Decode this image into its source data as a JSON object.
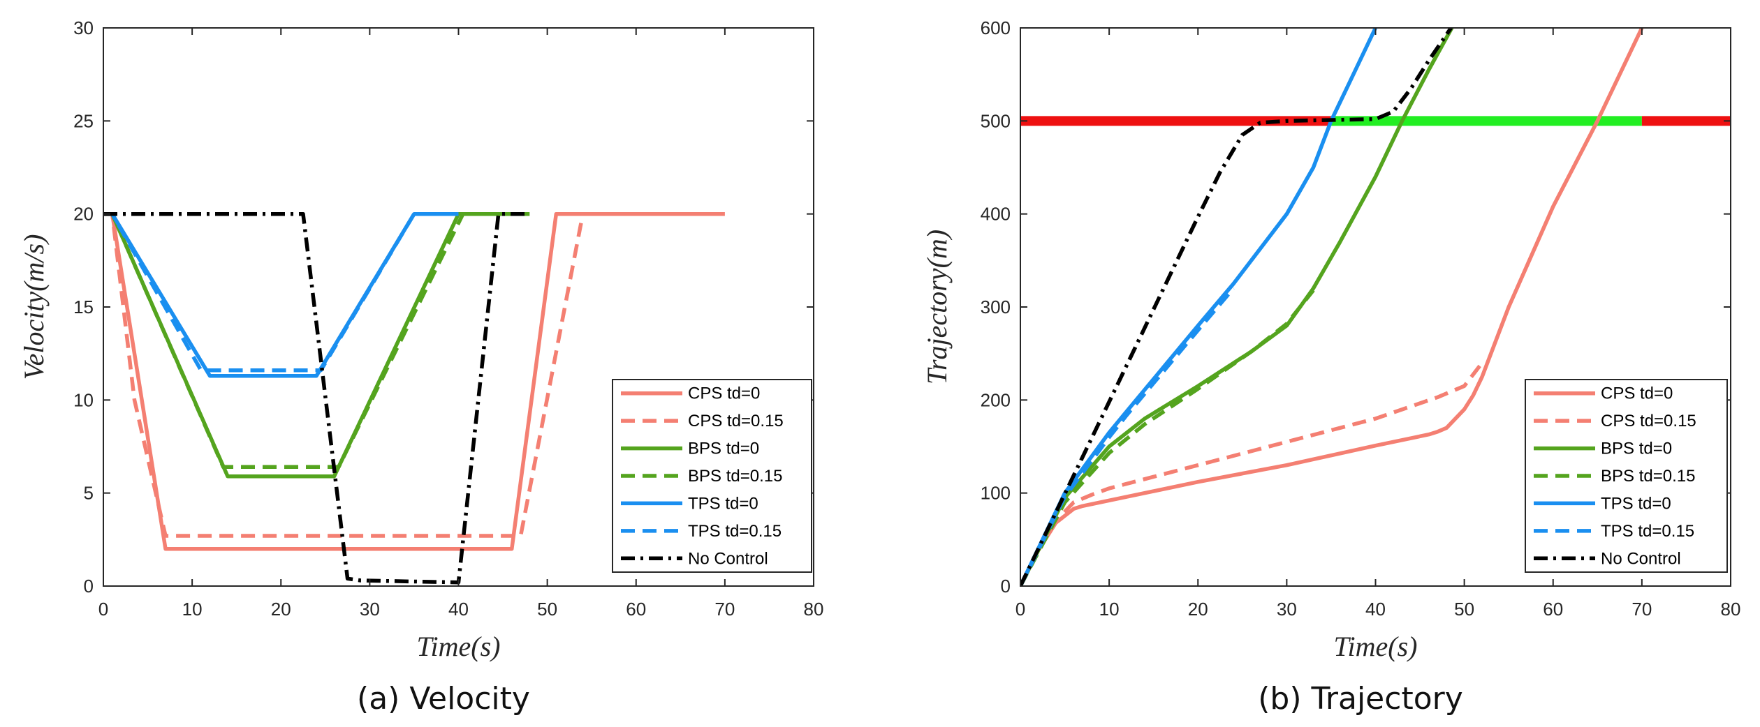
{
  "chart_data": [
    {
      "type": "line",
      "caption": "(a) Velocity",
      "xlabel": "Time(s)",
      "ylabel": "Velocity(m/s)",
      "xlim": [
        0,
        80
      ],
      "ylim": [
        0,
        30
      ],
      "xticks": [
        0,
        10,
        20,
        30,
        40,
        50,
        60,
        70,
        80
      ],
      "yticks": [
        0,
        5,
        10,
        15,
        20,
        25,
        30
      ],
      "grid": false,
      "legend_position": "bottom-right",
      "series": [
        {
          "name": "CPS td=0",
          "color": "#f47f72",
          "dash": "solid",
          "x": [
            0,
            1,
            7,
            46,
            51,
            70
          ],
          "y": [
            20,
            20,
            2,
            2,
            20,
            20
          ]
        },
        {
          "name": "CPS td=0.15",
          "color": "#f47f72",
          "dash": "dashed",
          "x": [
            0,
            1,
            3.5,
            7,
            47,
            54
          ],
          "y": [
            20,
            20,
            10,
            2.7,
            2.7,
            20
          ]
        },
        {
          "name": "BPS td=0",
          "color": "#54a41e",
          "dash": "solid",
          "x": [
            0,
            1,
            14,
            26,
            40,
            48
          ],
          "y": [
            20,
            20,
            5.9,
            5.9,
            20,
            20
          ]
        },
        {
          "name": "BPS td=0.15",
          "color": "#54a41e",
          "dash": "dashed",
          "x": [
            0,
            1,
            13.5,
            26.5,
            40.5,
            48
          ],
          "y": [
            20,
            20,
            6.4,
            6.4,
            20,
            20
          ]
        },
        {
          "name": "TPS td=0",
          "color": "#1a8ff0",
          "dash": "solid",
          "x": [
            0,
            1,
            12,
            24,
            35,
            40
          ],
          "y": [
            20,
            20,
            11.3,
            11.3,
            20,
            20
          ]
        },
        {
          "name": "TPS td=0.15",
          "color": "#1a8ff0",
          "dash": "dashed",
          "x": [
            0,
            1,
            11,
            24.5,
            35,
            40
          ],
          "y": [
            20,
            20,
            11.6,
            11.6,
            20,
            20
          ]
        },
        {
          "name": "No Control",
          "color": "#000000",
          "dash": "dashdot",
          "x": [
            0,
            22.5,
            27.5,
            29,
            40,
            44.5,
            48
          ],
          "y": [
            20,
            20,
            0.4,
            0.3,
            0.2,
            20,
            20
          ]
        }
      ]
    },
    {
      "type": "line",
      "caption": "(b) Trajectory",
      "xlabel": "Time(s)",
      "ylabel": "Trajectory(m)",
      "xlim": [
        0,
        80
      ],
      "ylim": [
        0,
        600
      ],
      "xticks": [
        0,
        10,
        20,
        30,
        40,
        50,
        60,
        70,
        80
      ],
      "yticks": [
        0,
        100,
        200,
        300,
        400,
        500,
        600
      ],
      "grid": false,
      "legend_position": "bottom-right",
      "signal_line": {
        "y": 500,
        "segments": [
          {
            "x_start": 0,
            "x_end": 35,
            "color": "#ee1111"
          },
          {
            "x_start": 35,
            "x_end": 70,
            "color": "#22ee22"
          },
          {
            "x_start": 70,
            "x_end": 80,
            "color": "#ee1111"
          }
        ]
      },
      "series": [
        {
          "name": "CPS td=0",
          "color": "#f47f72",
          "dash": "solid",
          "x": [
            0,
            2,
            4,
            6,
            7,
            10,
            20,
            30,
            40,
            46,
            47,
            48,
            50,
            51,
            52,
            55,
            60,
            65,
            70
          ],
          "y": [
            0,
            38,
            68,
            83,
            86,
            92,
            112,
            130,
            151,
            163,
            166,
            170,
            190,
            205,
            225,
            300,
            408,
            500,
            600
          ]
        },
        {
          "name": "CPS td=0.15",
          "color": "#f47f72",
          "dash": "dashed",
          "x": [
            0,
            2,
            4,
            6,
            8,
            10,
            20,
            30,
            40,
            47,
            50,
            52
          ],
          "y": [
            0,
            38,
            70,
            90,
            98,
            105,
            130,
            155,
            180,
            203,
            215,
            240
          ]
        },
        {
          "name": "BPS td=0",
          "color": "#54a41e",
          "dash": "solid",
          "x": [
            0,
            5,
            10,
            14,
            20,
            26,
            30,
            33,
            36,
            40,
            43,
            46,
            49
          ],
          "y": [
            0,
            95,
            150,
            180,
            215,
            252,
            280,
            320,
            370,
            440,
            500,
            555,
            607
          ]
        },
        {
          "name": "BPS td=0.15",
          "color": "#54a41e",
          "dash": "dashed",
          "x": [
            0,
            5,
            10,
            14,
            20,
            26,
            30,
            33
          ],
          "y": [
            0,
            90,
            143,
            174,
            212,
            252,
            282,
            318
          ]
        },
        {
          "name": "TPS td=0",
          "color": "#1a8ff0",
          "dash": "solid",
          "x": [
            0,
            5,
            10,
            12,
            20,
            24,
            30,
            33,
            35,
            37,
            40
          ],
          "y": [
            0,
            100,
            165,
            188,
            280,
            325,
            400,
            450,
            500,
            540,
            600
          ]
        },
        {
          "name": "TPS td=0.15",
          "color": "#1a8ff0",
          "dash": "dashed",
          "x": [
            0,
            5,
            10,
            12,
            20,
            24
          ],
          "y": [
            0,
            96,
            160,
            184,
            275,
            320
          ]
        },
        {
          "name": "No Control",
          "color": "#000000",
          "dash": "dashdot",
          "x": [
            0,
            10,
            20,
            22.5,
            25,
            27,
            30,
            35,
            40,
            42,
            44,
            46,
            48.5
          ],
          "y": [
            0,
            198,
            397,
            445,
            485,
            498,
            500,
            501,
            502,
            510,
            535,
            565,
            600
          ]
        }
      ]
    }
  ]
}
